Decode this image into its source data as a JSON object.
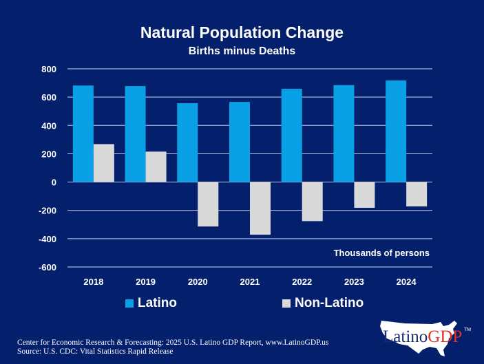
{
  "chart_data": {
    "type": "bar",
    "title": "Natural Population Change",
    "subtitle": "Births minus Deaths",
    "xlabel": "",
    "ylabel": "",
    "annotation": "Thousands of persons",
    "categories": [
      "2018",
      "2019",
      "2020",
      "2021",
      "2022",
      "2023",
      "2024"
    ],
    "series": [
      {
        "name": "Latino",
        "color": "#0aa0e6",
        "values": [
          682,
          678,
          557,
          566,
          659,
          685,
          718
        ]
      },
      {
        "name": "Non-Latino",
        "color": "#d9d9d9",
        "values": [
          268,
          215,
          -314,
          -372,
          -276,
          -182,
          -172
        ]
      }
    ],
    "ylim": [
      -600,
      800
    ],
    "yticks": [
      800,
      600,
      400,
      200,
      0,
      -200,
      -400,
      -600
    ],
    "ytick_labels": [
      "800",
      "600",
      "400",
      "200",
      "0",
      "-200",
      "-400",
      "-600"
    ],
    "grid": true,
    "legend_position": "bottom"
  },
  "footer": {
    "line1": "Center for Economic Research & Forecasting: 2025 U.S. Latino GDP Report, www.LatinoGDP.us",
    "line2": "Source: U.S. CDC: Vital Statistics Rapid Release"
  },
  "logo": {
    "part1": "Latino",
    "part2": "GDP",
    "tm": "TM"
  },
  "colors": {
    "background": "#041f6b",
    "gridline": "#a9b4dc"
  }
}
